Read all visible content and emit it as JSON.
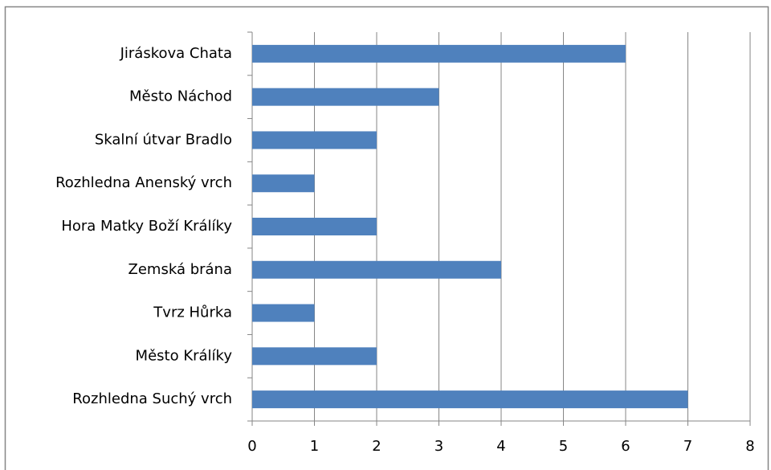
{
  "chart_data": {
    "type": "barh",
    "categories": [
      "Jiráskova Chata",
      "Město Náchod",
      "Skalní útvar Bradlo",
      "Rozhledna Anenský vrch",
      "Hora Matky Boží Králíky",
      "Zemská brána",
      "Tvrz Hůrka",
      "Město Králíky",
      "Rozhledna Suchý vrch"
    ],
    "values": [
      6,
      3,
      2,
      1,
      2,
      4,
      1,
      2,
      7
    ],
    "color": "#4f81bd",
    "xlim": [
      0,
      8
    ],
    "xticks": [
      0,
      1,
      2,
      3,
      4,
      5,
      6,
      7,
      8
    ],
    "grid": true
  }
}
